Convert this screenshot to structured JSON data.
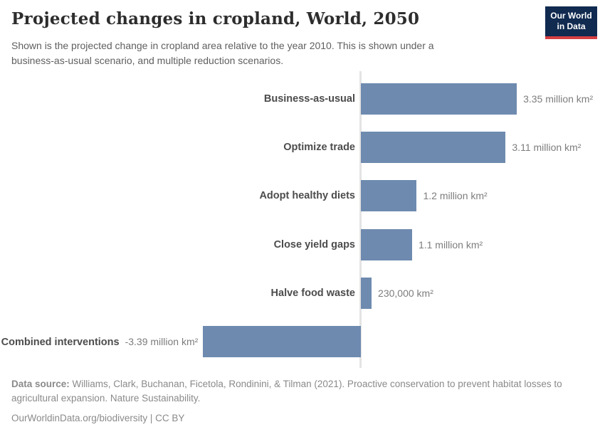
{
  "header": {
    "title": "Projected changes in cropland, World, 2050",
    "subtitle": "Shown is the projected change in cropland area relative to the year 2010. This is shown under a business-as-usual scenario, and multiple reduction scenarios.",
    "logo": {
      "line1": "Our World",
      "line2": "in Data",
      "bg_color": "#102a50",
      "accent_color": "#d63e42"
    }
  },
  "chart_data": {
    "type": "bar",
    "orientation": "horizontal",
    "unit": "million km²",
    "categories": [
      "Business-as-usual",
      "Optimize trade",
      "Adopt healthy diets",
      "Close yield gaps",
      "Halve food waste",
      "Combined interventions"
    ],
    "values": [
      3.35,
      3.11,
      1.2,
      1.1,
      0.23,
      -3.39
    ],
    "value_labels": [
      "3.35 million km²",
      "3.11 million km²",
      "1.2 million km²",
      "1.1 million km²",
      "230,000 km²",
      "-3.39 million km²"
    ],
    "xlim": [
      -3.39,
      3.35
    ],
    "baseline": 0,
    "bar_color": "#6e8aaf",
    "axis_color": "#e4e4e4",
    "grid": false,
    "legend": false
  },
  "footer": {
    "source_label": "Data source:",
    "source_text": " Williams, Clark, Buchanan, Ficetola, Rondinini, & Tilman (2021). Proactive conservation to prevent habitat losses to agricultural expansion. Nature Sustainability.",
    "attribution": "OurWorldinData.org/biodiversity | CC BY"
  }
}
